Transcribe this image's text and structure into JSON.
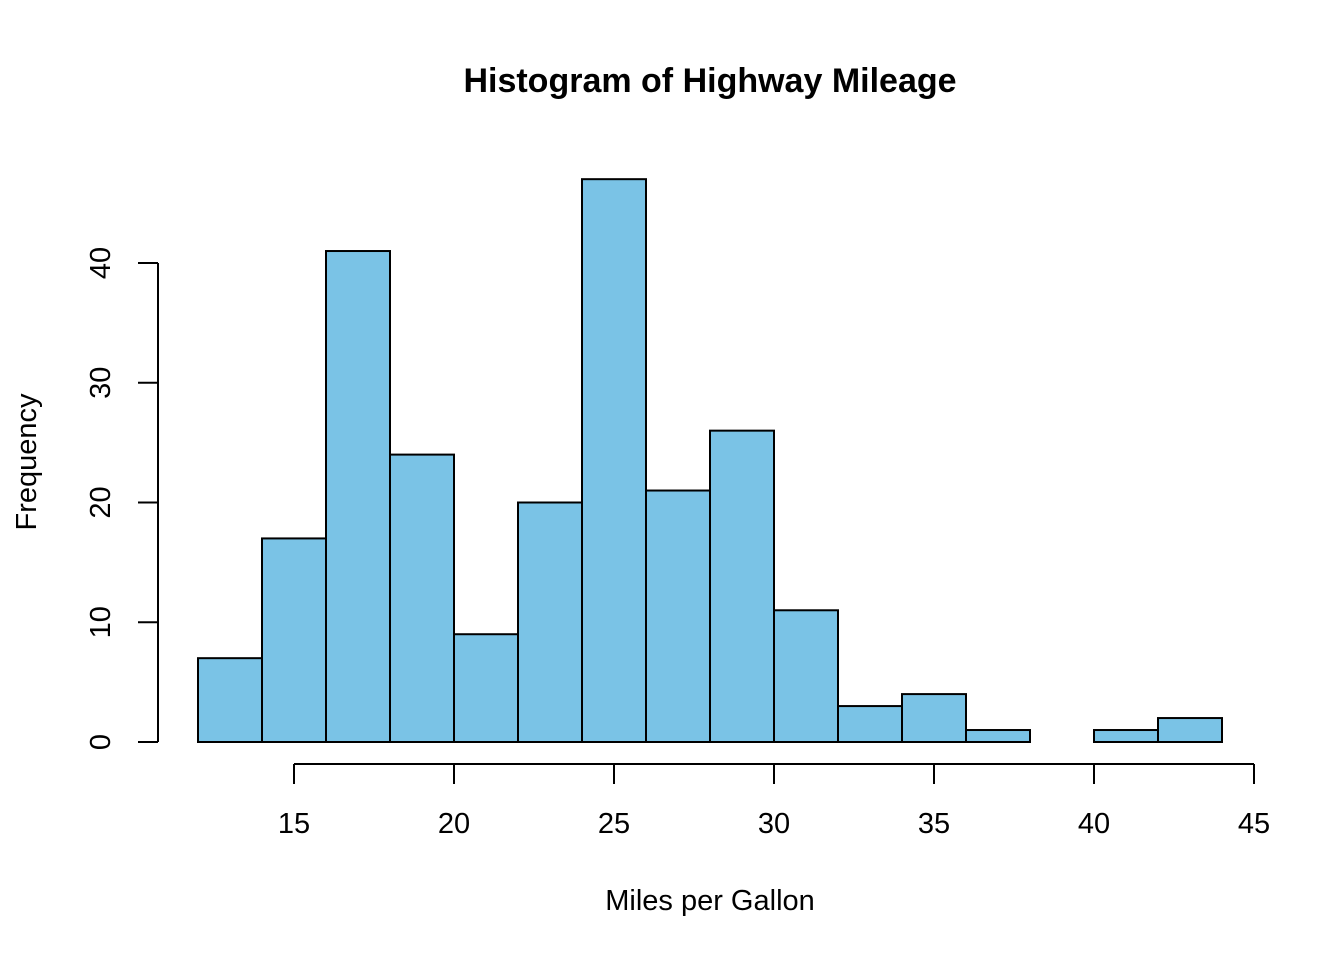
{
  "chart_data": {
    "type": "bar",
    "subtype": "histogram",
    "title": "Histogram of Highway Mileage",
    "xlabel": "Miles per Gallon",
    "ylabel": "Frequency",
    "bin_edges": [
      12,
      14,
      16,
      18,
      20,
      22,
      24,
      26,
      28,
      30,
      32,
      34,
      36,
      38,
      40,
      42,
      44
    ],
    "values": [
      7,
      17,
      41,
      24,
      9,
      20,
      47,
      21,
      26,
      11,
      3,
      4,
      1,
      0,
      1,
      2
    ],
    "xlim": [
      12,
      44
    ],
    "ylim": [
      0,
      47
    ],
    "x_ticks": [
      15,
      20,
      25,
      30,
      35,
      40,
      45
    ],
    "x_tick_labels": [
      "15",
      "20",
      "25",
      "30",
      "35",
      "40",
      "45"
    ],
    "y_ticks": [
      0,
      10,
      20,
      30,
      40
    ],
    "y_tick_labels": [
      "0",
      "10",
      "20",
      "30",
      "40"
    ],
    "grid": false,
    "legend": "none",
    "colors": {
      "bar_fill": "#7AC3E6",
      "bar_stroke": "#000000",
      "axis": "#000000",
      "background": "#FFFFFF"
    }
  }
}
